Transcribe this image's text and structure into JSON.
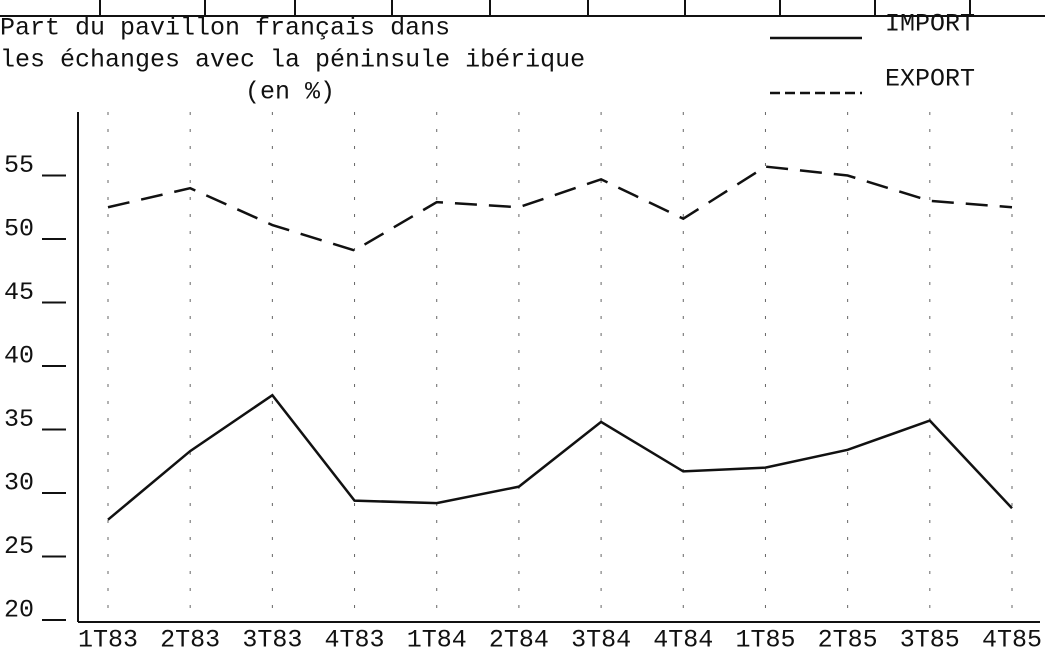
{
  "chart_data": {
    "type": "line",
    "title": [
      "Part du pavillon français dans",
      "les échanges avec la péninsule ibérique",
      "(en %)"
    ],
    "categories": [
      "1T83",
      "2T83",
      "3T83",
      "4T83",
      "1T84",
      "2T84",
      "3T84",
      "4T84",
      "1T85",
      "2T85",
      "3T85",
      "4T85"
    ],
    "series": [
      {
        "name": "IMPORT",
        "color": "#111111",
        "dash": "solid",
        "values": [
          27.9,
          33.3,
          37.7,
          29.4,
          29.2,
          30.5,
          35.6,
          31.7,
          32.0,
          33.4,
          35.7,
          28.8
        ]
      },
      {
        "name": "EXPORT",
        "color": "#111111",
        "dash": "dashed",
        "values": [
          52.5,
          54.0,
          51.1,
          49.1,
          52.9,
          52.5,
          54.7,
          51.6,
          55.7,
          55.0,
          53.0,
          52.5
        ]
      }
    ],
    "ylim": [
      20,
      60
    ],
    "yticks": [
      20,
      25,
      30,
      35,
      40,
      45,
      50,
      55
    ],
    "grid": true,
    "legend": "top-right"
  }
}
